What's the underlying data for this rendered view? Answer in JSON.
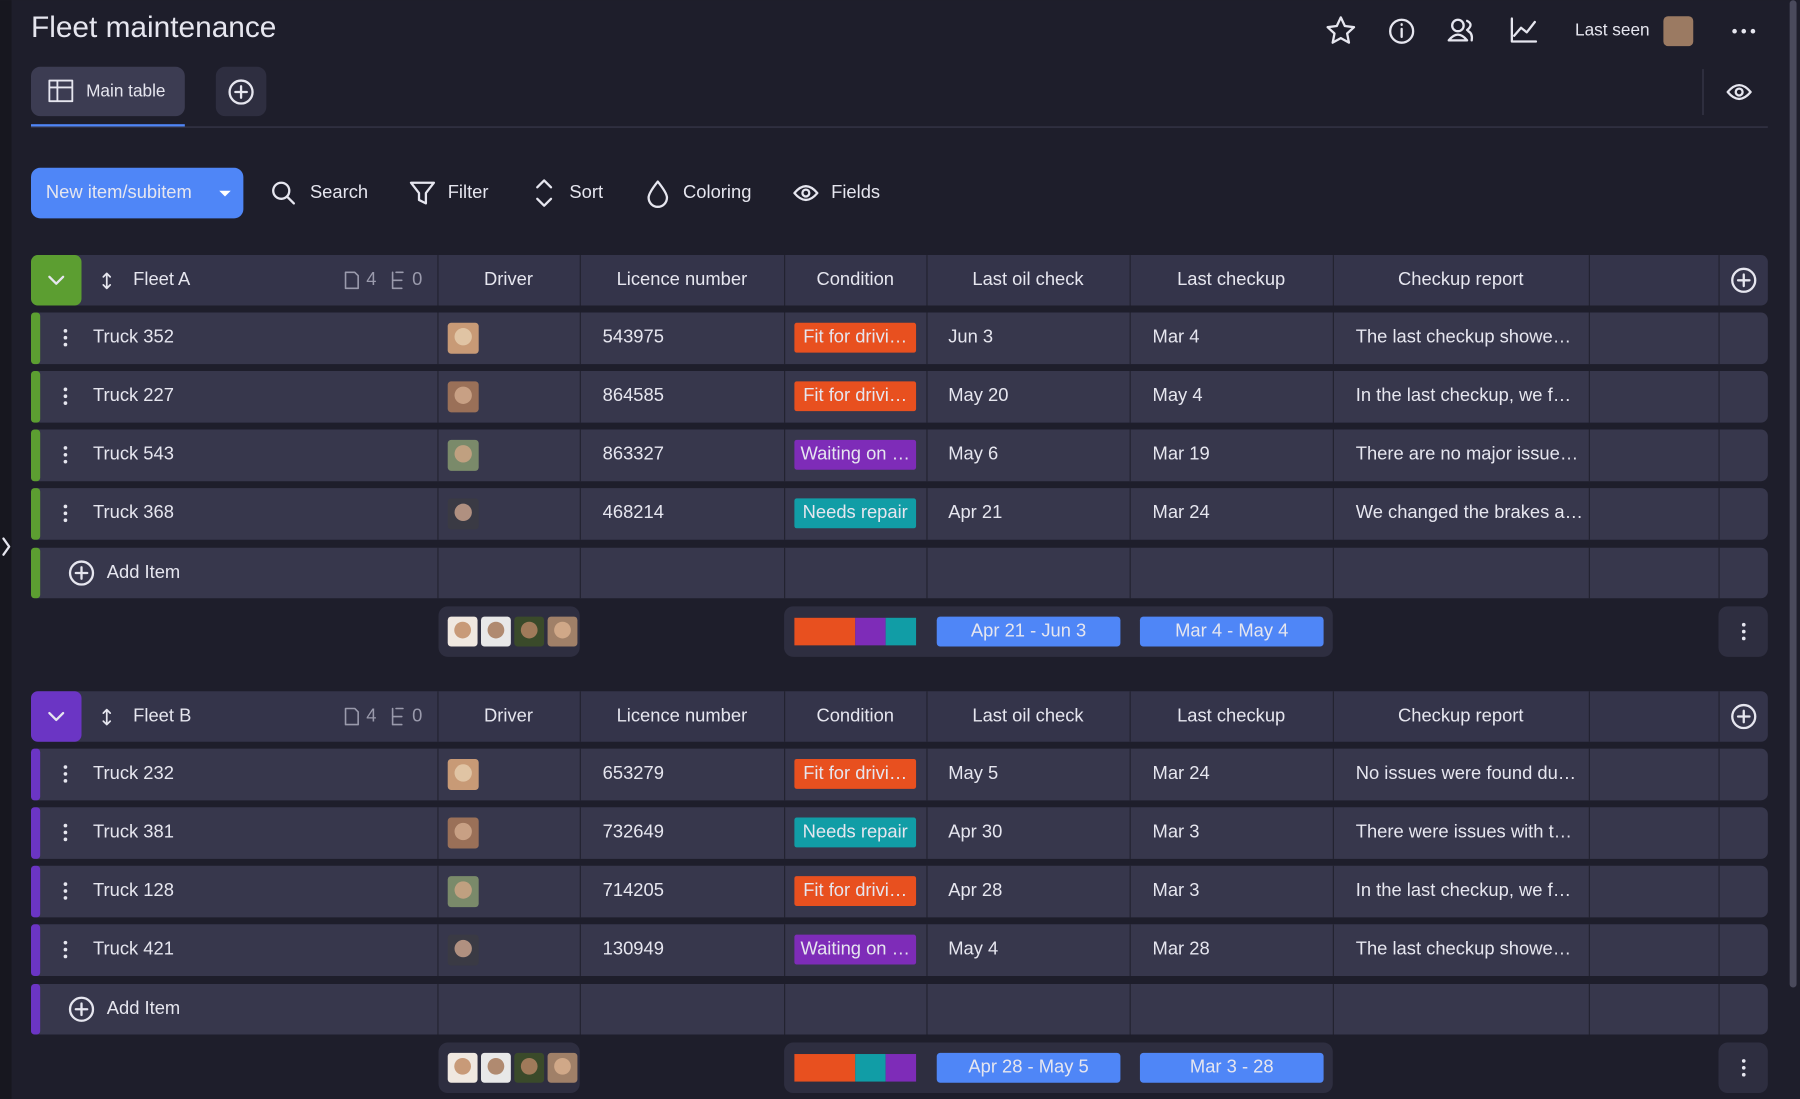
{
  "header": {
    "title": "Fleet maintenance",
    "last_seen": "Last seen"
  },
  "tabs": [
    {
      "label": "Main table"
    }
  ],
  "toolbar": {
    "new_item": "New item/subitem",
    "search": "Search",
    "filter": "Filter",
    "sort": "Sort",
    "coloring": "Coloring",
    "fields": "Fields"
  },
  "columns": [
    "Driver",
    "Licence number",
    "Condition",
    "Last oil check",
    "Last checkup",
    "Checkup report"
  ],
  "groups": [
    {
      "name": "Fleet A",
      "color": "#5c9e31",
      "items_count": 4,
      "subitems_count": 0,
      "add_item": "Add Item",
      "oil_range": "Apr 21 - Jun 3",
      "checkup_range": "Mar 4 - May 4",
      "rows": [
        {
          "name": "Truck 352",
          "licence": 543975,
          "condition": {
            "label": "Fit for drivi…",
            "color": "#e8501f"
          },
          "last_oil_check": "Jun 3",
          "last_checkup": "Mar 4",
          "report": "The last checkup showe…"
        },
        {
          "name": "Truck 227",
          "licence": 864585,
          "condition": {
            "label": "Fit for drivi…",
            "color": "#e8501f"
          },
          "last_oil_check": "May 20",
          "last_checkup": "May 4",
          "report": "In the last checkup, we f…"
        },
        {
          "name": "Truck 543",
          "licence": 863327,
          "condition": {
            "label": "Waiting on …",
            "color": "#7e2cb8"
          },
          "last_oil_check": "May 6",
          "last_checkup": "Mar 19",
          "report": "There are no major issue…"
        },
        {
          "name": "Truck 368",
          "licence": 468214,
          "condition": {
            "label": "Needs repair",
            "color": "#119da6"
          },
          "last_oil_check": "Apr 21",
          "last_checkup": "Mar 24",
          "report": "We changed the brakes a…"
        }
      ]
    },
    {
      "name": "Fleet B",
      "color": "#6b35c4",
      "items_count": 4,
      "subitems_count": 0,
      "add_item": "Add Item",
      "oil_range": "Apr 28 - May 5",
      "checkup_range": "Mar 3 - 28",
      "rows": [
        {
          "name": "Truck 232",
          "licence": 653279,
          "condition": {
            "label": "Fit for drivi…",
            "color": "#e8501f"
          },
          "last_oil_check": "May 5",
          "last_checkup": "Mar 24",
          "report": "No issues were found du…"
        },
        {
          "name": "Truck 381",
          "licence": 732649,
          "condition": {
            "label": "Needs repair",
            "color": "#119da6"
          },
          "last_oil_check": "Apr 30",
          "last_checkup": "Mar 3",
          "report": "There were issues with t…"
        },
        {
          "name": "Truck 128",
          "licence": 714205,
          "condition": {
            "label": "Fit for drivi…",
            "color": "#e8501f"
          },
          "last_oil_check": "Apr 28",
          "last_checkup": "Mar 3",
          "report": "In the last checkup, we f…"
        },
        {
          "name": "Truck 421",
          "licence": 130949,
          "condition": {
            "label": "Waiting on …",
            "color": "#7e2cb8"
          },
          "last_oil_check": "May 4",
          "last_checkup": "Mar 28",
          "report": "The last checkup showe…"
        }
      ]
    }
  ]
}
